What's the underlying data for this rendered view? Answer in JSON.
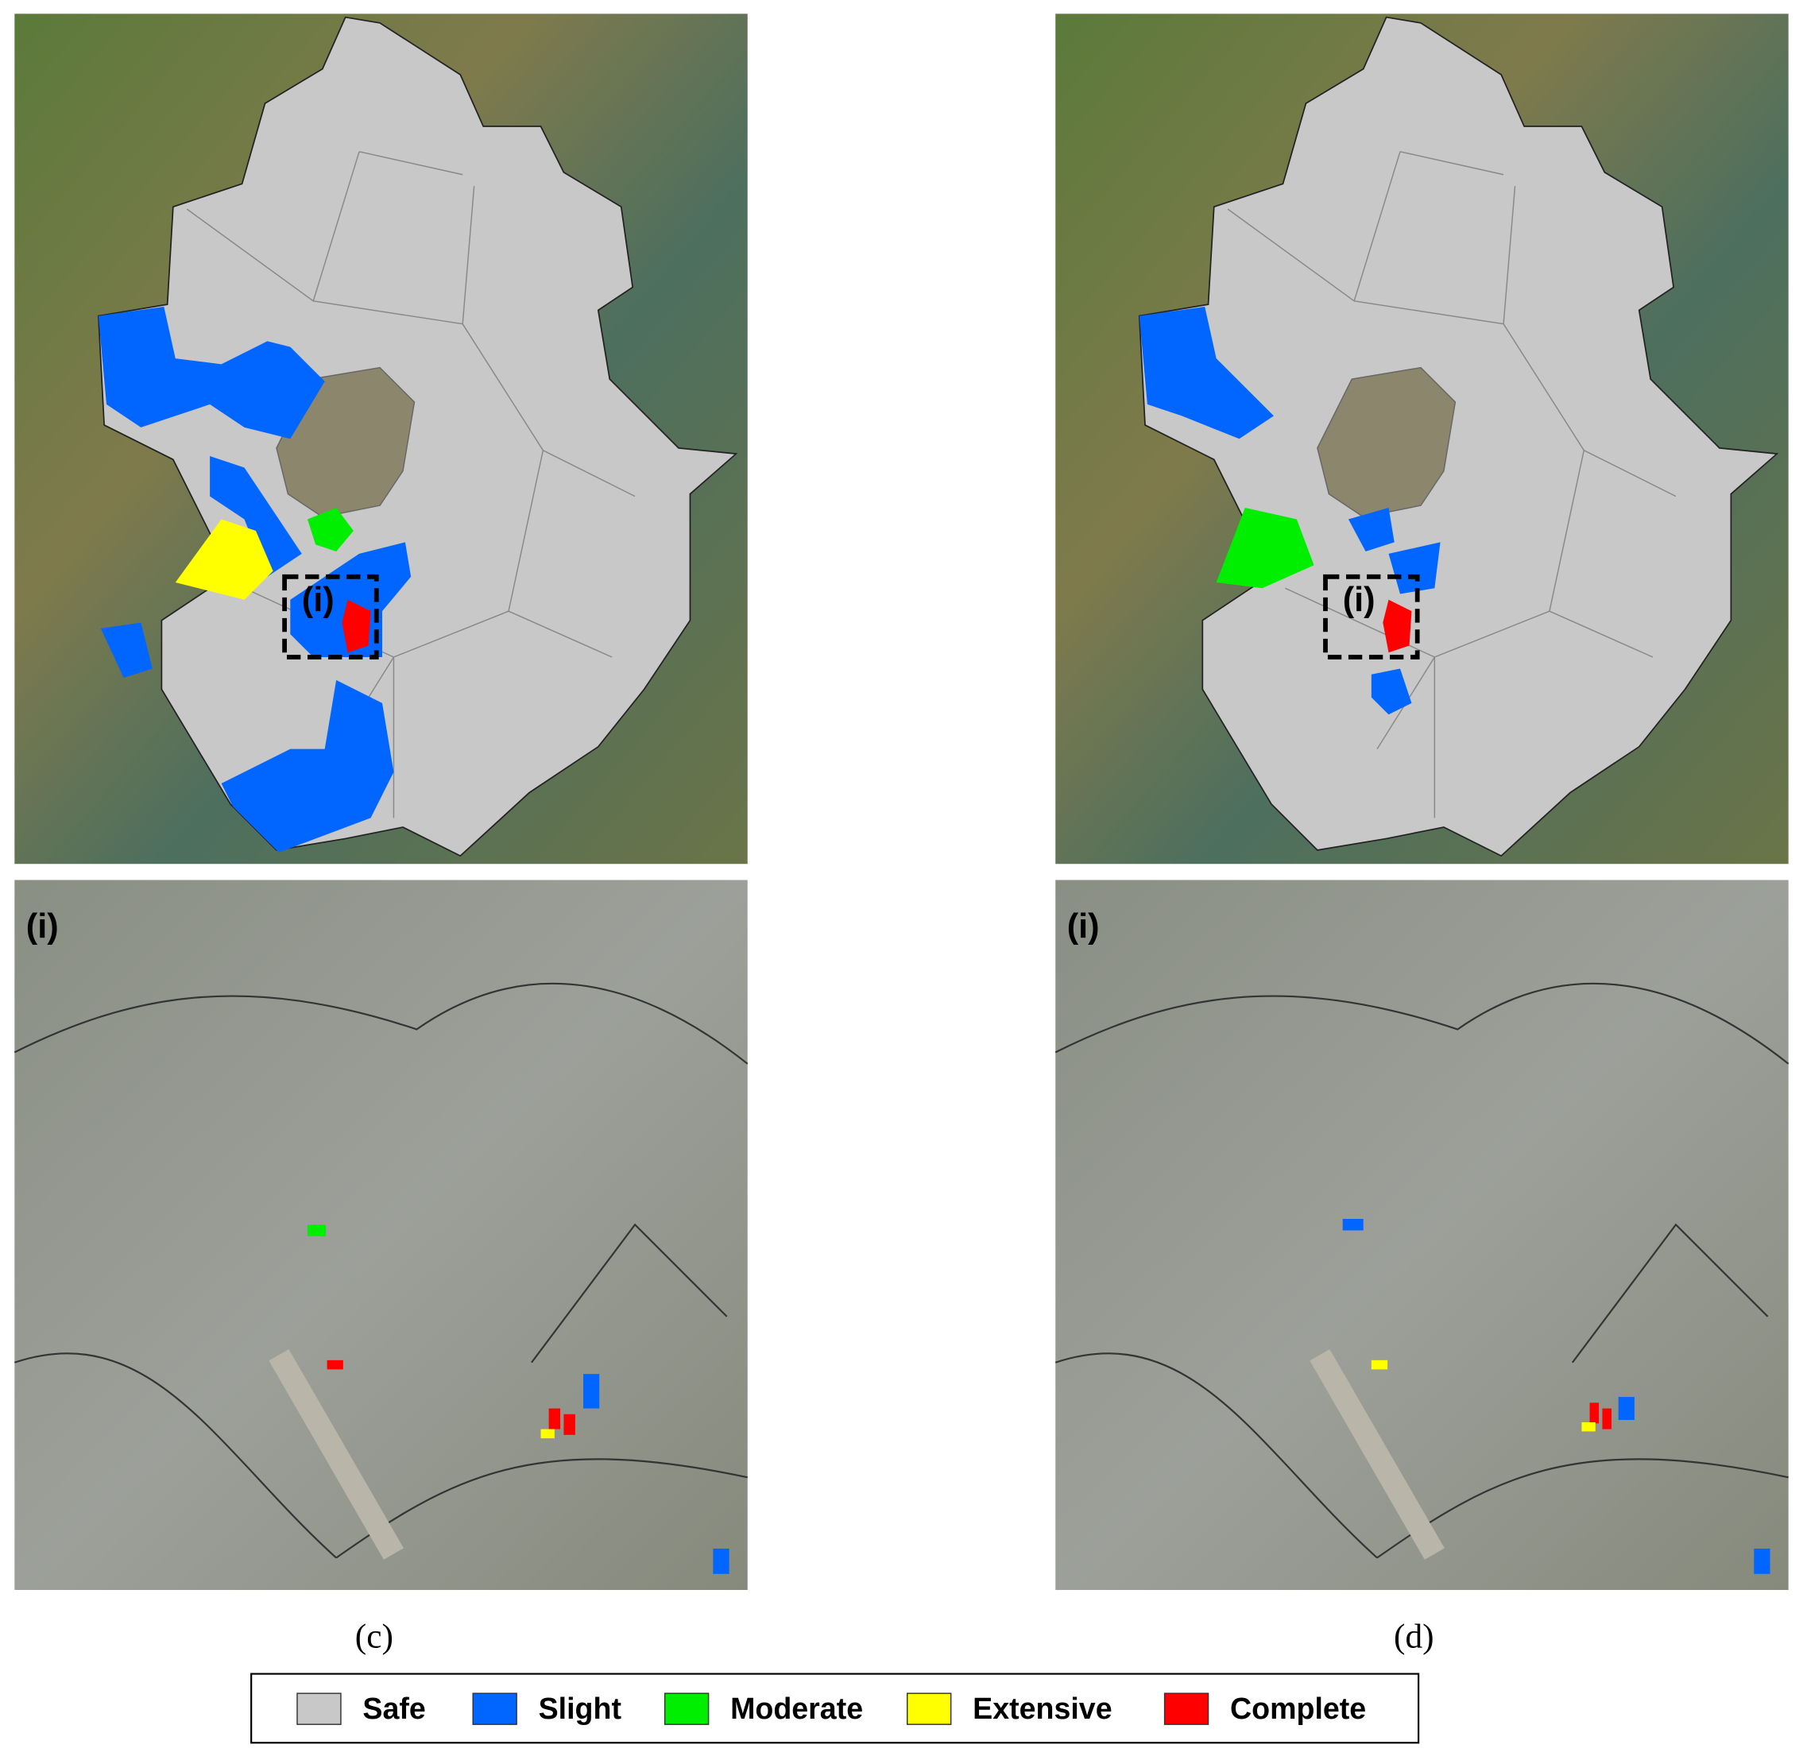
{
  "panels": [
    {
      "caption": "(c)",
      "overview_inset_label": "(i)",
      "detail_label": "(i)"
    },
    {
      "caption": "(d)",
      "overview_inset_label": "(i)",
      "detail_label": "(i)"
    }
  ],
  "legend": [
    {
      "label": "Safe",
      "color": "#c8c8c8"
    },
    {
      "label": "Slight",
      "color": "#0066ff"
    },
    {
      "label": "Moderate",
      "color": "#00ee00"
    },
    {
      "label": "Extensive",
      "color": "#ffff00"
    },
    {
      "label": "Complete",
      "color": "#ff0000"
    }
  ]
}
